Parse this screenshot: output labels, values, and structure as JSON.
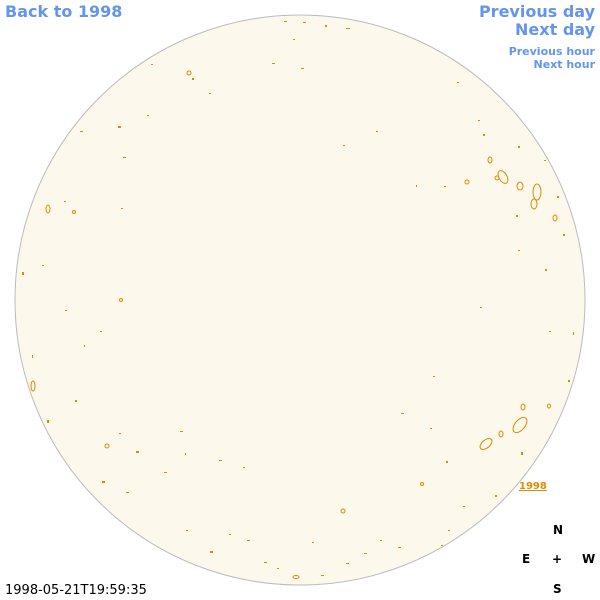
{
  "navigation": {
    "back": "Back to 1998",
    "previous_day": "Previous day",
    "next_day": "Next day",
    "previous_hour": "Previous hour",
    "next_hour": "Next hour"
  },
  "image": {
    "year_label": "1998",
    "timestamp": "1998-05-21T19:59:35"
  },
  "compass": {
    "north": "N",
    "east": "E",
    "center": "+",
    "west": "W",
    "south": "S"
  }
}
